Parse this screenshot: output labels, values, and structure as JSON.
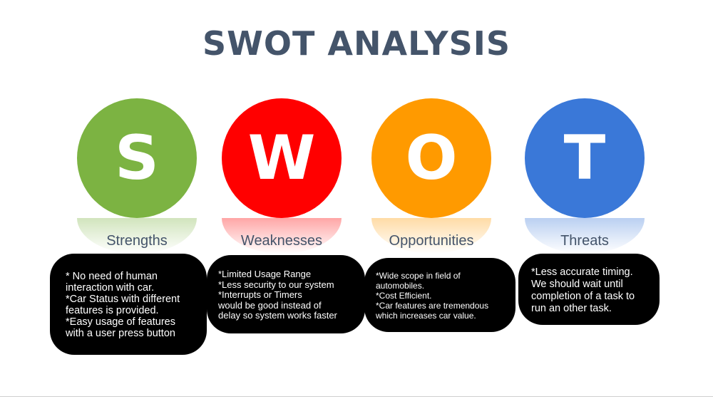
{
  "title": "SWOT ANALYSIS",
  "items": [
    {
      "letter": "S",
      "label": "Strengths",
      "color": "#7cb342",
      "text": "* No need of human\n  interaction with car.\n*Car Status with different\nfeatures is provided.\n*Easy usage of features\nwith a user press button"
    },
    {
      "letter": "W",
      "label": "Weaknesses",
      "color": "#ff0000",
      "text": "*Limited Usage Range\n*Less security to our system\n*Interrupts or Timers\nwould be good instead of\ndelay so system works faster"
    },
    {
      "letter": "O",
      "label": "Opportunities",
      "color": "#ff9a00",
      "text": "*Wide scope in field of\nautomobiles.\n*Cost Efficient.\n*Car features are tremendous\nwhich increases car value."
    },
    {
      "letter": "T",
      "label": "Threats",
      "color": "#3a78d8",
      "text": "*Less accurate timing.\nWe should wait until\ncompletion of a task to\nrun an other task."
    }
  ]
}
